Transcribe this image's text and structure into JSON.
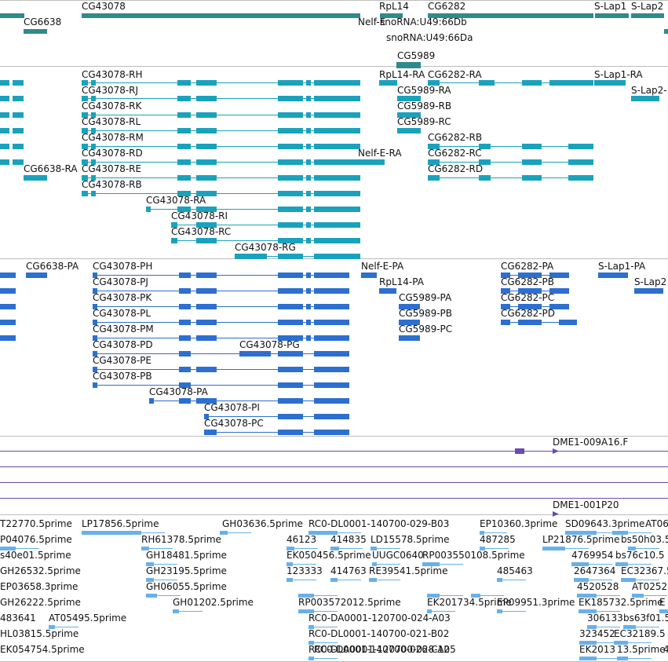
{
  "colors": {
    "gene": "#2f8a8c",
    "transcript": "#1aa2bd",
    "protein": "#2d6fd0",
    "clone": "#6a4bb0",
    "est": "#6ab0e8",
    "separator": "#bdbdbd"
  },
  "tracks": {
    "genes": {
      "labels": [
        "CG6638",
        "CG43078",
        "Nelf-E",
        "RpL14",
        "snoRNA:U49:66Db",
        "snoRNA:U49:66Da",
        "CG5989",
        "CG6282",
        "S-Lap1",
        "S-Lap2"
      ]
    },
    "transcripts": {
      "labels": [
        "CG43078-RH",
        "CG43078-RJ",
        "CG43078-RK",
        "CG43078-RL",
        "CG43078-RM",
        "CG43078-RD",
        "CG6638-RA",
        "CG43078-RE",
        "CG43078-RB",
        "CG43078-RA",
        "CG43078-RI",
        "CG43078-RC",
        "CG43078-RG",
        "RpL14-RA",
        "CG6282-RA",
        "CG5989-RA",
        "CG5989-RB",
        "CG5989-RC",
        "Nelf-E-RA",
        "CG6282-RB",
        "CG6282-RC",
        "CG6282-RD",
        "S-Lap1-RA",
        "S-Lap2-"
      ]
    },
    "proteins": {
      "labels": [
        "CG6638-PA",
        "CG43078-PH",
        "CG43078-PJ",
        "CG43078-PK",
        "CG43078-PL",
        "CG43078-PM",
        "CG43078-PD",
        "CG43078-PG",
        "CG43078-PE",
        "CG43078-PB",
        "CG43078-PA",
        "CG43078-PI",
        "CG43078-PC",
        "Nelf-E-PA",
        "RpL14-PA",
        "CG5989-PA",
        "CG5989-PB",
        "CG5989-PC",
        "CG6282-PA",
        "CG6282-PB",
        "CG6282-PC",
        "CG6282-PD",
        "S-Lap1-PA",
        "S-Lap2"
      ]
    },
    "clones": {
      "labels": [
        "DME1-009A16.F",
        "DME1-001P20"
      ]
    },
    "ests": {
      "labels": [
        "T22770.5prime",
        "LP17856.5prime",
        "GH03636.5prime",
        "RC0-DL0001-140700-029-B03",
        "EP10360.3prime",
        "SD09643.3prime",
        "AT06",
        "P04076.5prime",
        "RH61378.5prime",
        "46123",
        "414835",
        "LD15578.5prime",
        "487285",
        "LP21876.5prime",
        "bs50h03.5",
        "s40e01.5prime",
        "GH18481.5prime",
        "EK050456.5prime",
        "UUGC0640",
        "RP003550108.5prime",
        "4769954",
        "bs76c10.5",
        "GH26532.5prime",
        "GH23195.5prime",
        "123333",
        "414763",
        "RE39541.5prime",
        "485463",
        "2647364",
        "EC32367.5",
        "EP03658.3prime",
        "GH06055.5prime",
        "4520528",
        "AT0252",
        "GH26222.5prime",
        "GH01202.5prime",
        "RP003572012.5prime",
        "EK201734.5prime",
        "EP09951.3prime",
        "EK185732.5prime",
        "E",
        "483641",
        "AT05495.5prime",
        "RC0-DA0001-120700-024-A03",
        "306133",
        "bs63f01.5",
        "HL03815.5prime",
        "RC0-DL0001-140700-021-B02",
        "323452",
        "EC32189.5",
        "EK054754.5prime",
        "RC0-DL0001-140700-026-C12",
        "EK2013",
        "13.5prime",
        "4",
        "RC0-DA0001-120700-028-A05"
      ]
    }
  }
}
